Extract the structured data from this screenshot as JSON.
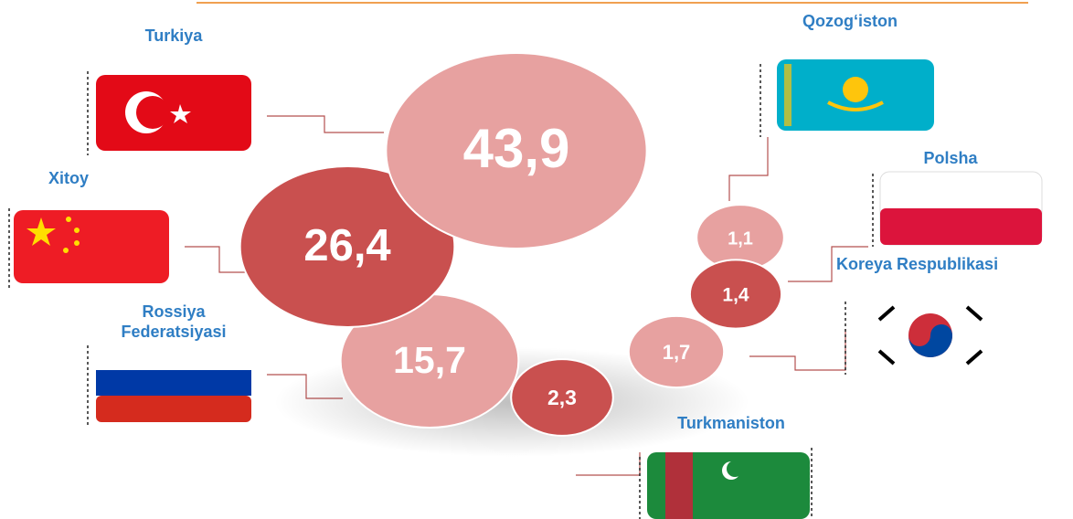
{
  "chart_data": {
    "type": "bubble",
    "categories": [
      "Turkiya",
      "Xitoy",
      "Rossiya\nFederatsiyasi",
      "Turkmaniston",
      "Koreya Respublikasi",
      "Polsha",
      "Qozog‘iston"
    ],
    "values": [
      43.9,
      26.4,
      15.7,
      2.3,
      1.7,
      1.4,
      1.1
    ],
    "value_labels": [
      "43,9",
      "26,4",
      "15,7",
      "2,3",
      "1,7",
      "1,4",
      "1,1"
    ],
    "colors": [
      "#e7a1a0",
      "#c9504f",
      "#e7a1a0",
      "#c9504f",
      "#e7a1a0",
      "#c9504f",
      "#e7a1a0"
    ]
  }
}
